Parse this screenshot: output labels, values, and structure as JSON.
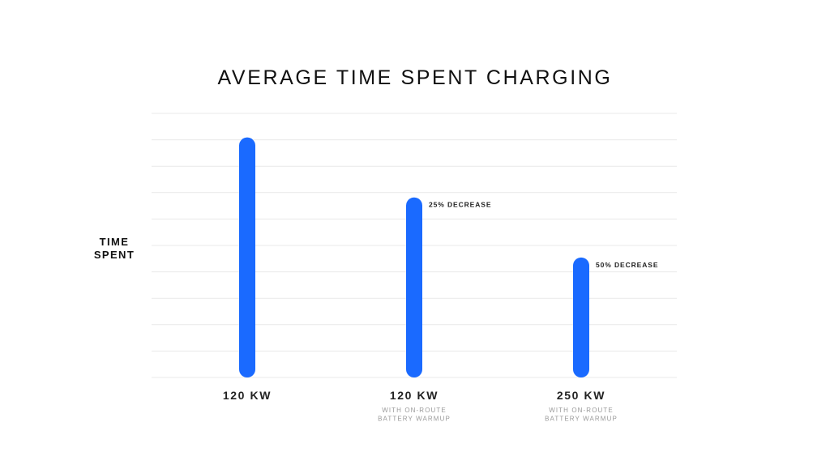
{
  "chart_data": {
    "type": "bar",
    "title": "AVERAGE TIME SPENT CHARGING",
    "ylabel": [
      "TIME",
      "SPENT"
    ],
    "xlabel": "",
    "categories": [
      {
        "label": "120 KW",
        "sublabel": []
      },
      {
        "label": "120 KW",
        "sublabel": [
          "WITH ON-ROUTE",
          "BATTERY WARMUP"
        ]
      },
      {
        "label": "250 KW",
        "sublabel": [
          "WITH ON-ROUTE",
          "BATTERY WARMUP"
        ]
      }
    ],
    "values": [
      100,
      75,
      50
    ],
    "annotations": [
      "",
      "25% DECREASE",
      "50% DECREASE"
    ],
    "ylim": [
      0,
      110
    ],
    "grid": true,
    "gridlines": 10,
    "bar_color": "#1a6aff",
    "gridline_color": "#e9e9e9"
  }
}
